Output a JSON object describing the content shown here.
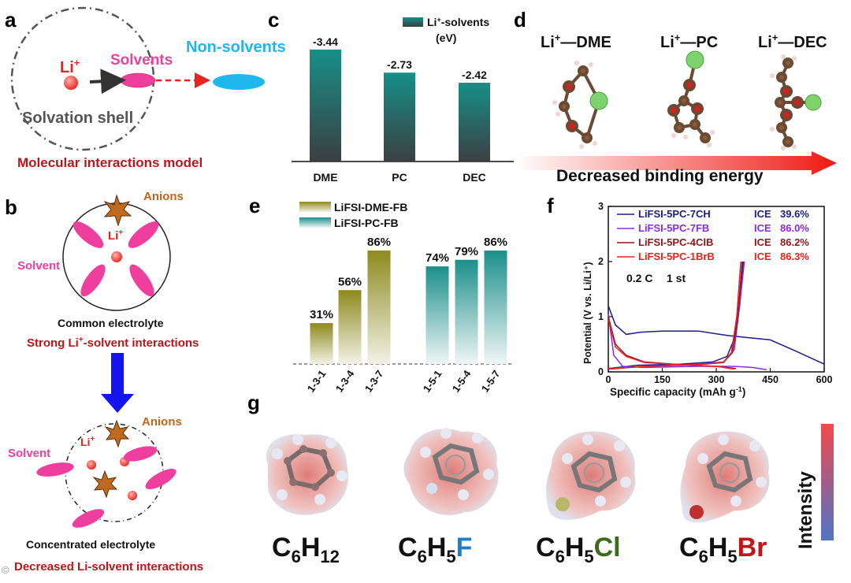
{
  "panel_letters": {
    "a": "a",
    "b": "b",
    "c": "c",
    "d": "d",
    "e": "e",
    "f": "f",
    "g": "g"
  },
  "panel_a": {
    "li": "Li",
    "li_sup": "+",
    "solvents": "Solvents",
    "non_solvents": "Non-solvents",
    "solvation_shell": "Solvation shell",
    "caption": "Molecular interactions model",
    "colors": {
      "li": "#e8231f",
      "solvent": "#ef3f9e",
      "non_solvent": "#1fb8ee",
      "caption": "#c0141a"
    }
  },
  "panel_b": {
    "anions_top": "Anions",
    "li_top": "Li",
    "li_top_sup": "+",
    "solvent_top": "Solvent",
    "common": "Common electrolyte",
    "strong_pre": "Strong Li",
    "strong_sup": "+",
    "strong_post": "-solvent interactions",
    "anions_bottom": "Anions",
    "li_bottom": "Li",
    "li_bottom_sup": "+",
    "solvent_bottom": "Solvent",
    "concentrated": "Concentrated electrolyte",
    "decreased": "Decreased Li-solvent interactions",
    "watermark": "©"
  },
  "chart_data": [
    {
      "id": "c",
      "type": "bar",
      "legend_label": "Li",
      "legend_sup": "+",
      "legend_rest": "-solvents",
      "legend_unit": "(eV)",
      "categories": [
        "DME",
        "PC",
        "DEC"
      ],
      "values": [
        -3.44,
        -2.73,
        -2.42
      ],
      "value_labels": [
        "-3.44",
        "-2.73",
        "-2.42"
      ],
      "ylim": [
        0,
        -3.8
      ],
      "color": "#1b8f8a"
    },
    {
      "id": "e",
      "type": "bar",
      "series": [
        {
          "name": "LiFSI-DME-FB",
          "categories": [
            "1-3-1",
            "1-3-4",
            "1-3-7"
          ],
          "values": [
            31,
            56,
            86
          ],
          "labels": [
            "31%",
            "56%",
            "86%"
          ],
          "color": "#8d8a20"
        },
        {
          "name": "LiFSI-PC-FB",
          "categories": [
            "1-5-1",
            "1-5-4",
            "1-5-7"
          ],
          "values": [
            74,
            79,
            86
          ],
          "labels": [
            "74%",
            "79%",
            "86%"
          ],
          "color": "#1b8f8a"
        }
      ],
      "ylim": [
        0,
        100
      ]
    },
    {
      "id": "f",
      "type": "line",
      "xlabel_pre": "Specific capacity (mAh g",
      "xlabel_sup": "-1",
      "xlabel_post": ")",
      "ylabel": "Potential (V vs. Li/Li⁺)",
      "xlim": [
        0,
        600
      ],
      "ylim": [
        0,
        3
      ],
      "xticks": [
        0,
        150,
        300,
        450,
        600
      ],
      "yticks": [
        0,
        1,
        2,
        3
      ],
      "xtick_labels": [
        "0",
        "150",
        "300",
        "450",
        "600"
      ],
      "ytick_labels": [
        "0",
        "1",
        "2",
        "3"
      ],
      "annotation_rate": "0.2 C",
      "annotation_cycle": "1 st",
      "ice_label": "ICE",
      "series": [
        {
          "name": "LiFSI-5PC-7CH",
          "ice": "39.6%",
          "color": "#1c1c8c",
          "discharge": [
            [
              0,
              1.2
            ],
            [
              20,
              0.85
            ],
            [
              50,
              0.68
            ],
            [
              90,
              0.72
            ],
            [
              150,
              0.74
            ],
            [
              250,
              0.74
            ],
            [
              330,
              0.66
            ],
            [
              390,
              0.62
            ],
            [
              450,
              0.58
            ],
            [
              520,
              0.38
            ],
            [
              600,
              0.14
            ]
          ],
          "charge": [
            [
              0,
              0.06
            ],
            [
              80,
              0.12
            ],
            [
              200,
              0.14
            ],
            [
              290,
              0.18
            ],
            [
              330,
              0.28
            ],
            [
              350,
              0.6
            ],
            [
              365,
              1.2
            ],
            [
              375,
              2.0
            ]
          ]
        },
        {
          "name": "LiFSI-5PC-7FB",
          "ice": "86.0%",
          "color": "#8a2be2",
          "discharge": [
            [
              0,
              1.05
            ],
            [
              15,
              0.3
            ],
            [
              40,
              0.1
            ],
            [
              100,
              0.08
            ],
            [
              250,
              0.1
            ],
            [
              350,
              0.1
            ],
            [
              400,
              0.08
            ],
            [
              440,
              0.04
            ]
          ],
          "charge": [
            [
              0,
              0.06
            ],
            [
              100,
              0.1
            ],
            [
              250,
              0.14
            ],
            [
              320,
              0.18
            ],
            [
              350,
              0.4
            ],
            [
              365,
              1.2
            ],
            [
              378,
              2.0
            ]
          ]
        },
        {
          "name": "LiFSI-5PC-4ClB",
          "ice": "86.2%",
          "color": "#8b1a1a",
          "discharge": [
            [
              0,
              1.0
            ],
            [
              20,
              0.5
            ],
            [
              50,
              0.3
            ],
            [
              100,
              0.18
            ],
            [
              200,
              0.13
            ],
            [
              300,
              0.1
            ],
            [
              355,
              0.06
            ]
          ],
          "charge": [
            [
              0,
              0.05
            ],
            [
              100,
              0.1
            ],
            [
              250,
              0.13
            ],
            [
              320,
              0.17
            ],
            [
              345,
              0.35
            ],
            [
              360,
              1.0
            ],
            [
              372,
              2.0
            ]
          ]
        },
        {
          "name": "LiFSI-5PC-1BrB",
          "ice": "86.3%",
          "color": "#e8231f",
          "discharge": [
            [
              0,
              0.95
            ],
            [
              20,
              0.45
            ],
            [
              50,
              0.28
            ],
            [
              100,
              0.17
            ],
            [
              200,
              0.13
            ],
            [
              300,
              0.1
            ],
            [
              350,
              0.05
            ]
          ],
          "charge": [
            [
              0,
              0.05
            ],
            [
              100,
              0.1
            ],
            [
              250,
              0.13
            ],
            [
              320,
              0.17
            ],
            [
              342,
              0.35
            ],
            [
              357,
              1.0
            ],
            [
              368,
              2.0
            ]
          ]
        }
      ]
    }
  ],
  "panel_d": {
    "mol1_pre": "Li",
    "mol1_sup": "+",
    "mol1_post": "—DME",
    "mol2_pre": "Li",
    "mol2_sup": "+",
    "mol2_post": "—PC",
    "mol3_pre": "Li",
    "mol3_sup": "+",
    "mol3_post": "—DEC",
    "arrow_text": "Decreased binding energy"
  },
  "panel_g": {
    "f1_c": "C",
    "f1_c_sub": "6",
    "f1_h": "H",
    "f1_h_sub": "12",
    "f2_c": "C",
    "f2_c_sub": "6",
    "f2_h": "H",
    "f2_h_sub": "5",
    "f2_x": "F",
    "f3_c": "C",
    "f3_c_sub": "6",
    "f3_h": "H",
    "f3_h_sub": "5",
    "f3_x": "Cl",
    "f4_c": "C",
    "f4_c_sub": "6",
    "f4_h": "H",
    "f4_h_sub": "5",
    "f4_x": "Br",
    "intensity": "Intensity",
    "colors": {
      "F": "#1f7fc8",
      "Cl": "#3c6b1e",
      "Br": "#c0141a"
    }
  }
}
